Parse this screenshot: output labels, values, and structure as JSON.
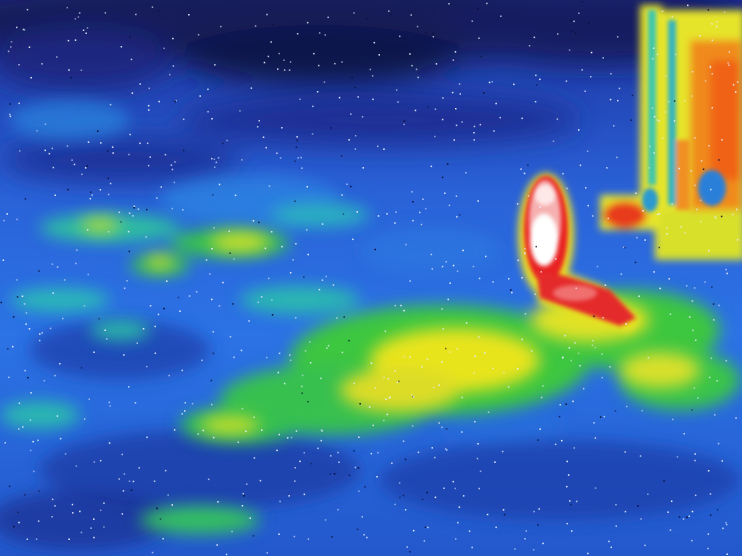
{
  "image": {
    "kind": "thermal-camera-frame",
    "palette": {
      "coldest": "#101040",
      "cold": "#1e3ab8",
      "cool": "#2f6fe8",
      "mild": "#2ab0c8",
      "warm": "#34c23a",
      "warmer": "#e8e820",
      "hot": "#f07010",
      "hotter": "#e02020",
      "hottest": "#ffffff"
    },
    "subjects": [
      {
        "name": "standing-figure",
        "temperature": "hottest"
      },
      {
        "name": "structure-right",
        "temperature": "hot"
      },
      {
        "name": "warm-ground-patches",
        "temperature": "warmer"
      },
      {
        "name": "background-terrain",
        "temperature": "cold"
      }
    ],
    "noise": "salt-pepper"
  }
}
